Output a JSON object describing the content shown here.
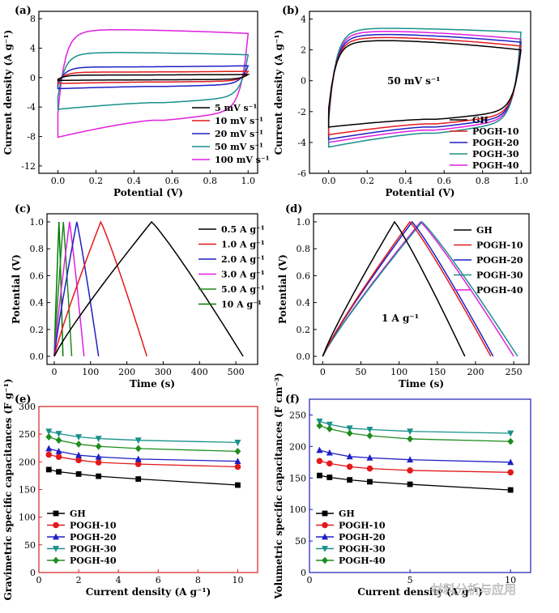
{
  "colors": {
    "GH": "#000000",
    "POGH-10": "#e31a1c",
    "POGH-20": "#1f1fc4",
    "POGH-30": "#19908a",
    "POGH-40": "#e01fe0",
    "scan_5": "#000000",
    "scan_10": "#e31a1c",
    "scan_20": "#1f1fc4",
    "scan_50": "#19908a",
    "scan_100": "#e01fe0",
    "gcd_0.5": "#000000",
    "gcd_1.0": "#e31a1c",
    "gcd_2.0": "#1f1fc4",
    "gcd_3.0": "#e01fe0",
    "gcd_5.0": "#1f8c1f",
    "gcd_10": "#007a00",
    "axis_red": "#d62020",
    "axis_blue": "#1a1ab8"
  },
  "watermark": "材料分析与应用",
  "chart_data": [
    {
      "panel": "(a)",
      "type": "line",
      "subtype": "cyclic-voltammetry",
      "xlabel": "Potential (V)",
      "ylabel": "Current density (A g⁻¹)",
      "xlim": [
        -0.1,
        1.05
      ],
      "ylim": [
        -13,
        9
      ],
      "xticks": [
        "0.0",
        "0.2",
        "0.4",
        "0.6",
        "0.8",
        "1.0"
      ],
      "yticks": [
        "-12",
        "-8",
        "-4",
        "0",
        "4",
        "8"
      ],
      "legend_position": "bottom-right",
      "series": [
        {
          "name": "5 mV s⁻¹",
          "color_key": "scan_5",
          "top_peak": 0.35,
          "bottom_low": -0.3,
          "end_top": 0.42,
          "start_bottom": -0.38
        },
        {
          "name": "10 mV s⁻¹",
          "color_key": "scan_10",
          "top_peak": 0.75,
          "bottom_low": -0.6,
          "end_top": 0.85,
          "start_bottom": -0.8
        },
        {
          "name": "20 mV s⁻¹",
          "color_key": "scan_20",
          "top_peak": 1.45,
          "bottom_low": -1.2,
          "end_top": 1.6,
          "start_bottom": -1.5
        },
        {
          "name": "50 mV s⁻¹",
          "color_key": "scan_50",
          "top_peak": 3.4,
          "bottom_low": -3.4,
          "end_top": 3.1,
          "start_bottom": -4.3
        },
        {
          "name": "100 mV s⁻¹",
          "color_key": "scan_100",
          "top_peak": 6.5,
          "bottom_low": -5.8,
          "end_top": 6.0,
          "start_bottom": -8.1
        }
      ]
    },
    {
      "panel": "(b)",
      "type": "line",
      "subtype": "cyclic-voltammetry",
      "xlabel": "Potential (V)",
      "ylabel": "Current density (A g⁻¹)",
      "annotation": "50 mV s⁻¹",
      "xlim": [
        -0.1,
        1.05
      ],
      "ylim": [
        -6,
        4.5
      ],
      "xticks": [
        "0.0",
        "0.2",
        "0.4",
        "0.6",
        "0.8",
        "1.0"
      ],
      "yticks": [
        "-6",
        "-4",
        "-2",
        "0",
        "2",
        "4"
      ],
      "legend_position": "bottom-right",
      "series": [
        {
          "name": "GH",
          "color_key": "GH",
          "top_peak": 2.6,
          "bottom_low": -2.5,
          "end_top": 2.0,
          "start_bottom": -3.0
        },
        {
          "name": "POGH-10",
          "color_key": "POGH-10",
          "top_peak": 2.8,
          "bottom_low": -2.8,
          "end_top": 2.25,
          "start_bottom": -3.5
        },
        {
          "name": "POGH-20",
          "color_key": "POGH-20",
          "top_peak": 3.0,
          "bottom_low": -3.0,
          "end_top": 2.5,
          "start_bottom": -3.8
        },
        {
          "name": "POGH-30",
          "color_key": "POGH-30",
          "top_peak": 3.4,
          "bottom_low": -3.4,
          "end_top": 3.15,
          "start_bottom": -4.3
        },
        {
          "name": "POGH-40",
          "color_key": "POGH-40",
          "top_peak": 3.2,
          "bottom_low": -3.2,
          "end_top": 2.7,
          "start_bottom": -4.0
        }
      ]
    },
    {
      "panel": "(c)",
      "type": "line",
      "subtype": "galvanostatic-charge-discharge",
      "xlabel": "Time (s)",
      "ylabel": "Potential (V)",
      "xlim": [
        -20,
        560
      ],
      "ylim": [
        -0.06,
        1.06
      ],
      "xticks": [
        "0",
        "100",
        "200",
        "300",
        "400",
        "500"
      ],
      "yticks": [
        "0.0",
        "0.2",
        "0.4",
        "0.6",
        "0.8",
        "1.0"
      ],
      "legend_position": "top-right",
      "series": [
        {
          "name": "0.5 A g⁻¹",
          "color_key": "gcd_0.5",
          "x": [
            0,
            268,
            520
          ],
          "y": [
            0,
            1,
            0
          ]
        },
        {
          "name": "1.0 A g⁻¹",
          "color_key": "gcd_1.0",
          "x": [
            0,
            128,
            255
          ],
          "y": [
            0,
            1,
            0
          ]
        },
        {
          "name": "2.0 A g⁻¹",
          "color_key": "gcd_2.0",
          "x": [
            0,
            62,
            122
          ],
          "y": [
            0,
            1,
            0
          ]
        },
        {
          "name": "3.0 A g⁻¹",
          "color_key": "gcd_3.0",
          "x": [
            0,
            42,
            82
          ],
          "y": [
            0,
            1,
            0
          ]
        },
        {
          "name": "5.0 A g⁻¹",
          "color_key": "gcd_5.0",
          "x": [
            0,
            25,
            48
          ],
          "y": [
            0,
            1,
            0
          ]
        },
        {
          "name": "10 A g⁻¹",
          "color_key": "gcd_10",
          "x": [
            0,
            13,
            24
          ],
          "y": [
            0,
            1,
            0
          ]
        }
      ]
    },
    {
      "panel": "(d)",
      "type": "line",
      "subtype": "galvanostatic-charge-discharge",
      "xlabel": "Time (s)",
      "ylabel": "Potential (V)",
      "annotation": "1 A g⁻¹",
      "xlim": [
        -12,
        270
      ],
      "ylim": [
        -0.06,
        1.06
      ],
      "xticks": [
        "0",
        "50",
        "100",
        "150",
        "200",
        "250"
      ],
      "yticks": [
        "0.0",
        "0.2",
        "0.4",
        "0.6",
        "0.8",
        "1.0"
      ],
      "legend_position": "top-right",
      "series": [
        {
          "name": "GH",
          "color_key": "GH",
          "x": [
            0,
            94,
            186
          ],
          "y": [
            0,
            1,
            0
          ]
        },
        {
          "name": "POGH-10",
          "color_key": "POGH-10",
          "x": [
            0,
            114,
            220
          ],
          "y": [
            0,
            1,
            0
          ]
        },
        {
          "name": "POGH-20",
          "color_key": "POGH-20",
          "x": [
            0,
            117,
            223
          ],
          "y": [
            0,
            1,
            0
          ]
        },
        {
          "name": "POGH-30",
          "color_key": "POGH-30",
          "x": [
            0,
            130,
            255
          ],
          "y": [
            0,
            1,
            0
          ]
        },
        {
          "name": "POGH-40",
          "color_key": "POGH-40",
          "x": [
            0,
            128,
            250
          ],
          "y": [
            0,
            1,
            0
          ]
        }
      ]
    },
    {
      "panel": "(e)",
      "type": "line",
      "subtype": "rate-capability",
      "xlabel": "Current density (A g⁻¹)",
      "ylabel": "Gravimetric specific capacitances (F g⁻¹)",
      "axis_color_key": "axis_red",
      "xlim": [
        0,
        11
      ],
      "ylim": [
        0,
        300
      ],
      "xticks": [
        "0",
        "2",
        "4",
        "6",
        "8",
        "10"
      ],
      "yticks": [
        "0",
        "50",
        "100",
        "150",
        "200",
        "250",
        "300"
      ],
      "legend_position": "bottom-left",
      "x": [
        0.5,
        1,
        2,
        3,
        5,
        10
      ],
      "series": [
        {
          "name": "GH",
          "color_key": "GH",
          "marker": "square",
          "values": [
            186,
            182,
            178,
            174,
            169,
            158
          ]
        },
        {
          "name": "POGH-10",
          "color_key": "POGH-10",
          "marker": "circle",
          "values": [
            213,
            209,
            203,
            199,
            196,
            191
          ]
        },
        {
          "name": "POGH-20",
          "color_key": "POGH-20",
          "marker": "triangle-up",
          "values": [
            224,
            219,
            212,
            209,
            205,
            201
          ]
        },
        {
          "name": "POGH-30",
          "color_key": "POGH-30",
          "marker": "triangle-down",
          "values": [
            255,
            251,
            245,
            242,
            239,
            235
          ]
        },
        {
          "name": "POGH-40",
          "color_key": "GH_green",
          "marker": "diamond",
          "values": [
            245,
            239,
            232,
            228,
            224,
            219
          ]
        }
      ]
    },
    {
      "panel": "(f)",
      "type": "line",
      "subtype": "rate-capability",
      "xlabel": "Current density (A g⁻¹)",
      "ylabel": "Volumetric specific capacitances (F cm⁻³)",
      "axis_color_key": "axis_blue",
      "xlim": [
        0,
        11
      ],
      "ylim": [
        0,
        275
      ],
      "xticks": [
        "0",
        "5",
        "10"
      ],
      "yticks": [
        "0",
        "50",
        "100",
        "150",
        "200",
        "250"
      ],
      "legend_position": "bottom-left",
      "x": [
        0.5,
        1,
        2,
        3,
        5,
        10
      ],
      "series": [
        {
          "name": "GH",
          "color_key": "GH",
          "marker": "square",
          "values": [
            154,
            151,
            147,
            144,
            140,
            131
          ]
        },
        {
          "name": "POGH-10",
          "color_key": "POGH-10",
          "marker": "circle",
          "values": [
            177,
            173,
            168,
            165,
            162,
            159
          ]
        },
        {
          "name": "POGH-20",
          "color_key": "POGH-20",
          "marker": "triangle-up",
          "values": [
            194,
            190,
            184,
            182,
            179,
            175
          ]
        },
        {
          "name": "POGH-30",
          "color_key": "POGH-30",
          "marker": "triangle-down",
          "values": [
            240,
            235,
            229,
            227,
            224,
            221
          ]
        },
        {
          "name": "POGH-40",
          "color_key": "GH_green",
          "marker": "diamond",
          "values": [
            233,
            228,
            221,
            217,
            212,
            208
          ]
        }
      ]
    }
  ]
}
